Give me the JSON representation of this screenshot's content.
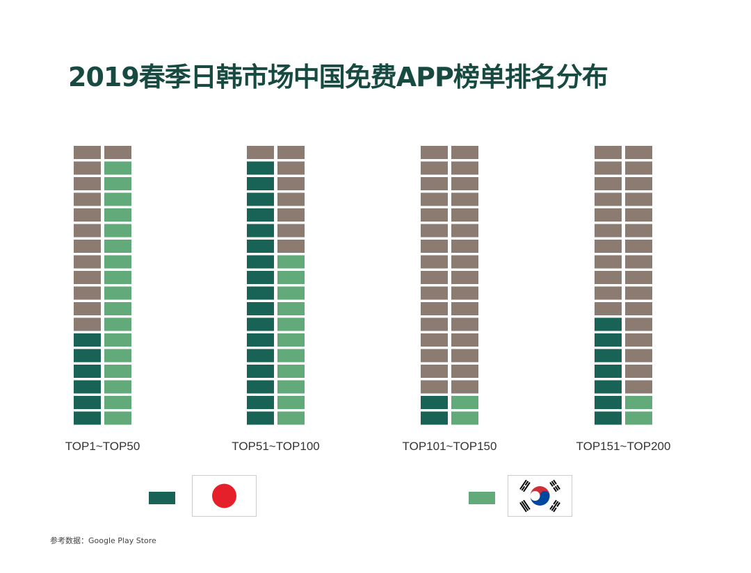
{
  "title": "2019春季日韩市场中国免费APP榜单排名分布",
  "source_note": "参考数据：Google Play Store",
  "colors": {
    "japan": "#196356",
    "korea": "#62aa7a",
    "other": "#8b7b70"
  },
  "legend": [
    {
      "country": "japan",
      "flag_icon": "japan-flag-icon",
      "color": "#196356"
    },
    {
      "country": "korea",
      "flag_icon": "south-korea-flag-icon",
      "color": "#62aa7a"
    }
  ],
  "chart_data": {
    "type": "waffle",
    "title": "2019春季日韩市场中国免费APP榜单排名分布",
    "description_units": "Number of Chinese free apps in each ranking band (each cell = one rank slot; left column = Japan, right column = Korea; cells fill from the bottom)",
    "cells_per_column": 18,
    "groups": [
      {
        "label": "TOP1~TOP50",
        "japan": 6,
        "korea": 17
      },
      {
        "label": "TOP51~TOP100",
        "japan": 17,
        "korea": 11
      },
      {
        "label": "TOP101~TOP150",
        "japan": 2,
        "korea": 2
      },
      {
        "label": "TOP151~TOP200",
        "japan": 7,
        "korea": 2
      }
    ],
    "legend": [
      "Japan",
      "South Korea"
    ]
  }
}
